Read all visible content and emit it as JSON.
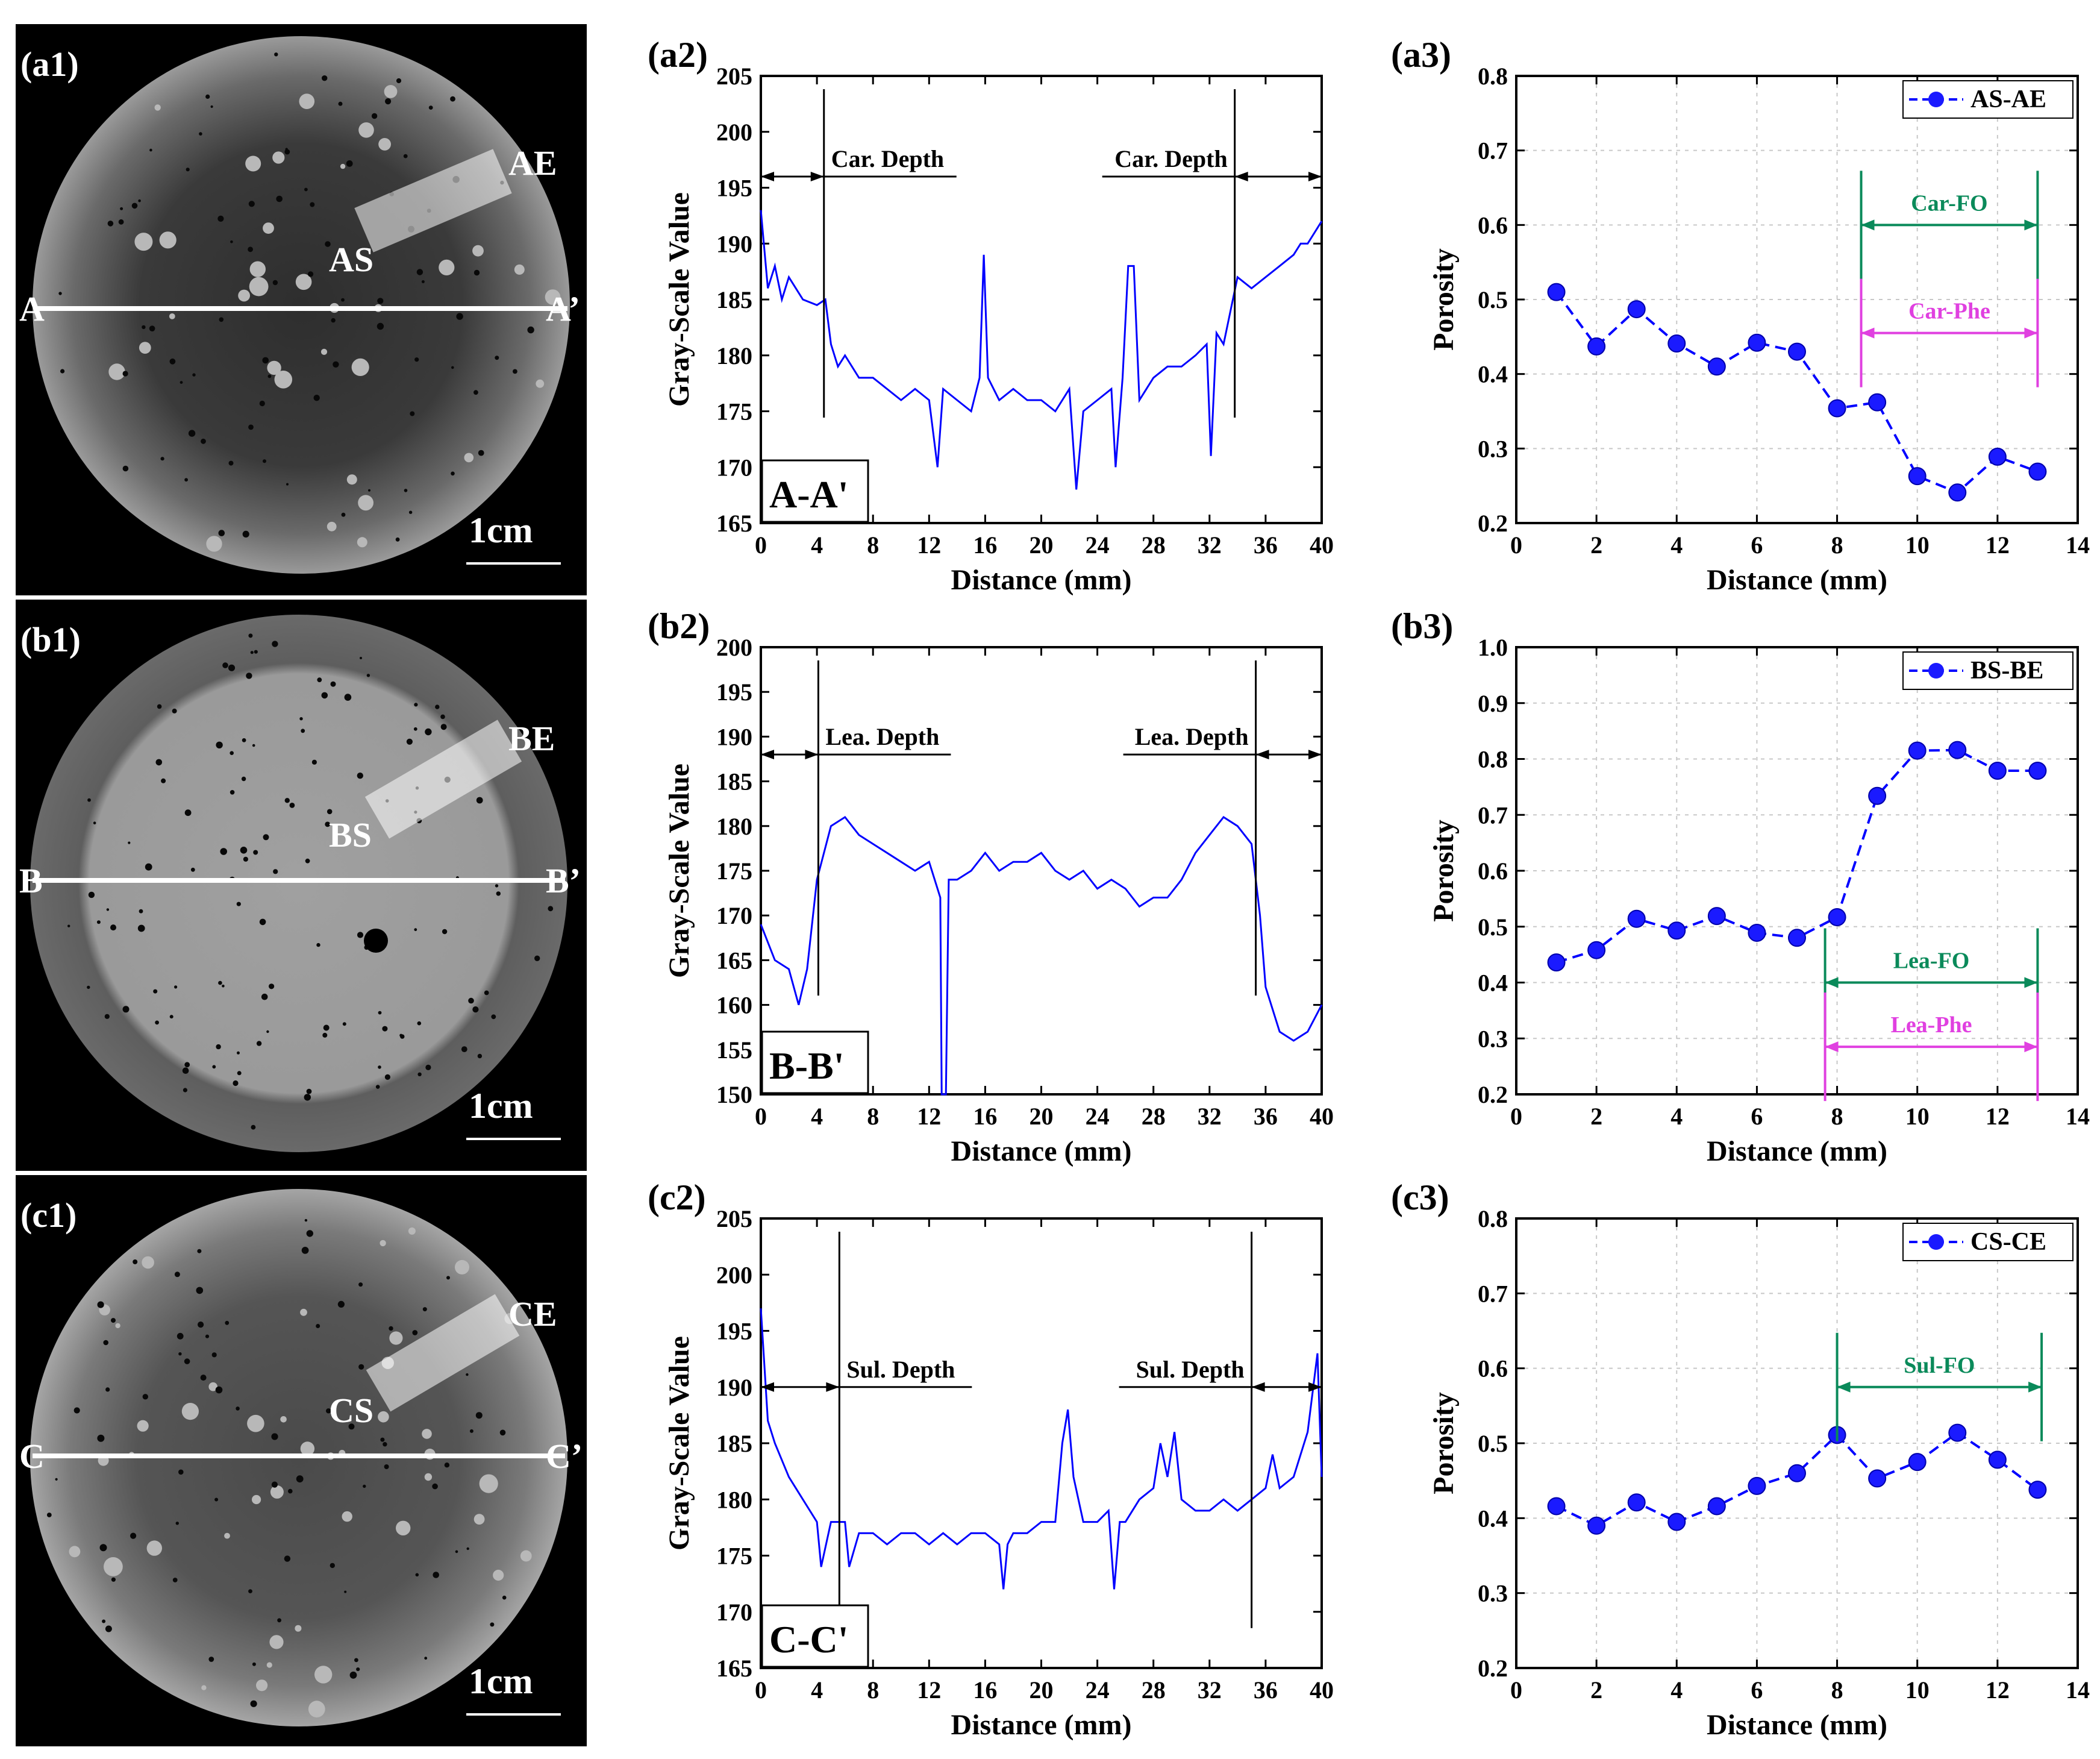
{
  "colors": {
    "line": "#0000ff",
    "marker": "#1a1aff",
    "green": "#0a8a5a",
    "magenta": "#e040e0",
    "ct_bg": "#000000",
    "section_line": "#ffffff"
  },
  "ct_panels": [
    {
      "label": "(a1)",
      "start": "AS",
      "end": "AE",
      "line_left": "A",
      "line_right": "A’",
      "scale": "1cm",
      "style": "carbonation"
    },
    {
      "label": "(b1)",
      "start": "BS",
      "end": "BE",
      "line_left": "B",
      "line_right": "B’",
      "scale": "1cm",
      "style": "leaching"
    },
    {
      "label": "(c1)",
      "start": "CS",
      "end": "CE",
      "line_left": "C",
      "line_right": "C’",
      "scale": "1cm",
      "style": "sulfate"
    }
  ],
  "chart_data": [
    {
      "id": "a2",
      "type": "line",
      "label": "(a2)",
      "tag": "A-A'",
      "xlabel": "Distance (mm)",
      "ylabel": "Gray-Scale Value",
      "xlim": [
        0,
        40
      ],
      "ylim": [
        165,
        205
      ],
      "xticks": [
        0,
        4,
        8,
        12,
        16,
        20,
        24,
        28,
        32,
        36,
        40
      ],
      "yticks": [
        165,
        170,
        175,
        180,
        185,
        190,
        195,
        200,
        205
      ],
      "annotations": [
        {
          "text": "Car. Depth",
          "x": 4.5,
          "arrow_y": 196,
          "side": "left"
        },
        {
          "text": "Car. Depth",
          "x": 33.8,
          "arrow_y": 196,
          "side": "right"
        }
      ],
      "profile": [
        [
          0,
          193
        ],
        [
          0.5,
          186
        ],
        [
          1,
          188
        ],
        [
          1.5,
          185
        ],
        [
          2,
          187
        ],
        [
          3,
          185
        ],
        [
          4,
          184.5
        ],
        [
          4.6,
          185
        ],
        [
          5,
          181
        ],
        [
          5.5,
          179
        ],
        [
          6,
          180
        ],
        [
          7,
          178
        ],
        [
          8,
          178
        ],
        [
          9,
          177
        ],
        [
          10,
          176
        ],
        [
          11,
          177
        ],
        [
          12,
          176
        ],
        [
          12.6,
          170
        ],
        [
          13,
          177
        ],
        [
          14,
          176
        ],
        [
          15,
          175
        ],
        [
          15.6,
          178
        ],
        [
          15.9,
          189
        ],
        [
          16.2,
          178
        ],
        [
          17,
          176
        ],
        [
          18,
          177
        ],
        [
          19,
          176
        ],
        [
          20,
          176
        ],
        [
          21,
          175
        ],
        [
          22,
          177
        ],
        [
          22.5,
          168
        ],
        [
          23,
          175
        ],
        [
          24,
          176
        ],
        [
          25,
          177
        ],
        [
          25.3,
          170
        ],
        [
          25.8,
          178
        ],
        [
          26.2,
          188
        ],
        [
          26.6,
          188
        ],
        [
          27,
          176
        ],
        [
          28,
          178
        ],
        [
          29,
          179
        ],
        [
          30,
          179
        ],
        [
          31,
          180
        ],
        [
          31.8,
          181
        ],
        [
          32.1,
          171
        ],
        [
          32.5,
          182
        ],
        [
          33,
          181
        ],
        [
          33.5,
          184
        ],
        [
          34,
          187
        ],
        [
          35,
          186
        ],
        [
          36,
          187
        ],
        [
          37,
          188
        ],
        [
          38,
          189
        ],
        [
          38.5,
          190
        ],
        [
          39,
          190
        ],
        [
          40,
          192
        ]
      ]
    },
    {
      "id": "a3",
      "type": "line",
      "label": "(a3)",
      "legend": "AS-AE",
      "xlabel": "Distance (mm)",
      "ylabel": "Porosity",
      "xlim": [
        0,
        14
      ],
      "ylim": [
        0.2,
        0.8
      ],
      "xticks": [
        0,
        2,
        4,
        6,
        8,
        10,
        12,
        14
      ],
      "yticks": [
        0.2,
        0.3,
        0.4,
        0.5,
        0.6,
        0.7,
        0.8
      ],
      "x": [
        1,
        2,
        3,
        4,
        5,
        6,
        7,
        8,
        9,
        10,
        11,
        12,
        13
      ],
      "y": [
        0.51,
        0.437,
        0.487,
        0.441,
        0.41,
        0.442,
        0.43,
        0.354,
        0.362,
        0.263,
        0.241,
        0.289,
        0.269
      ],
      "ranges": [
        {
          "text": "Car-FO",
          "color": "green",
          "from": 8.6,
          "to": 13,
          "y": 0.6
        },
        {
          "text": "Car-Phe",
          "color": "magenta",
          "from": 8.6,
          "to": 13,
          "y": 0.455
        }
      ]
    },
    {
      "id": "b2",
      "type": "line",
      "label": "(b2)",
      "tag": "B-B'",
      "xlabel": "Distance (mm)",
      "ylabel": "Gray-Scale Value",
      "xlim": [
        0,
        40
      ],
      "ylim": [
        150,
        200
      ],
      "xticks": [
        0,
        4,
        8,
        12,
        16,
        20,
        24,
        28,
        32,
        36,
        40
      ],
      "yticks": [
        150,
        155,
        160,
        165,
        170,
        175,
        180,
        185,
        190,
        195,
        200
      ],
      "annotations": [
        {
          "text": "Lea. Depth",
          "x": 4.1,
          "arrow_y": 188,
          "side": "left"
        },
        {
          "text": "Lea. Depth",
          "x": 35.3,
          "arrow_y": 188,
          "side": "right"
        }
      ],
      "profile": [
        [
          0,
          169
        ],
        [
          1,
          165
        ],
        [
          2,
          164
        ],
        [
          2.7,
          160
        ],
        [
          3.3,
          164
        ],
        [
          4,
          174
        ],
        [
          5,
          180
        ],
        [
          6,
          181
        ],
        [
          7,
          179
        ],
        [
          8,
          178
        ],
        [
          9,
          177
        ],
        [
          10,
          176
        ],
        [
          11,
          175
        ],
        [
          12,
          176
        ],
        [
          12.8,
          172
        ],
        [
          12.9,
          150
        ],
        [
          13.2,
          150
        ],
        [
          13.4,
          174
        ],
        [
          14,
          174
        ],
        [
          15,
          175
        ],
        [
          16,
          177
        ],
        [
          17,
          175
        ],
        [
          18,
          176
        ],
        [
          19,
          176
        ],
        [
          20,
          177
        ],
        [
          21,
          175
        ],
        [
          22,
          174
        ],
        [
          23,
          175
        ],
        [
          24,
          173
        ],
        [
          25,
          174
        ],
        [
          26,
          173
        ],
        [
          27,
          171
        ],
        [
          28,
          172
        ],
        [
          29,
          172
        ],
        [
          30,
          174
        ],
        [
          31,
          177
        ],
        [
          32,
          179
        ],
        [
          33,
          181
        ],
        [
          34,
          180
        ],
        [
          35,
          178
        ],
        [
          35.6,
          170
        ],
        [
          36,
          162
        ],
        [
          37,
          157
        ],
        [
          38,
          156
        ],
        [
          39,
          157
        ],
        [
          40,
          160
        ]
      ]
    },
    {
      "id": "b3",
      "type": "line",
      "label": "(b3)",
      "legend": "BS-BE",
      "xlabel": "Distance (mm)",
      "ylabel": "Porosity",
      "xlim": [
        0,
        14
      ],
      "ylim": [
        0.2,
        1.0
      ],
      "xticks": [
        0,
        2,
        4,
        6,
        8,
        10,
        12,
        14
      ],
      "yticks": [
        0.2,
        0.3,
        0.4,
        0.5,
        0.6,
        0.7,
        0.8,
        0.9,
        1.0
      ],
      "x": [
        1,
        2,
        3,
        4,
        5,
        6,
        7,
        8,
        9,
        10,
        11,
        12,
        13
      ],
      "y": [
        0.436,
        0.458,
        0.514,
        0.493,
        0.519,
        0.489,
        0.48,
        0.517,
        0.734,
        0.815,
        0.816,
        0.779,
        0.779
      ],
      "ranges": [
        {
          "text": "Lea-FO",
          "color": "green",
          "from": 7.7,
          "to": 13,
          "y": 0.4
        },
        {
          "text": "Lea-Phe",
          "color": "magenta",
          "from": 7.7,
          "to": 13,
          "y": 0.285
        }
      ]
    },
    {
      "id": "c2",
      "type": "line",
      "label": "(c2)",
      "tag": "C-C'",
      "xlabel": "Distance (mm)",
      "ylabel": "Gray-Scale Value",
      "xlim": [
        0,
        40
      ],
      "ylim": [
        165,
        205
      ],
      "xticks": [
        0,
        4,
        8,
        12,
        16,
        20,
        24,
        28,
        32,
        36,
        40
      ],
      "yticks": [
        165,
        170,
        175,
        180,
        185,
        190,
        195,
        200,
        205
      ],
      "annotations": [
        {
          "text": "Sul. Depth",
          "x": 5.6,
          "arrow_y": 190,
          "side": "left"
        },
        {
          "text": "Sul. Depth",
          "x": 35,
          "arrow_y": 190,
          "side": "right"
        }
      ],
      "profile": [
        [
          0,
          197
        ],
        [
          0.5,
          187
        ],
        [
          1,
          185
        ],
        [
          2,
          182
        ],
        [
          3,
          180
        ],
        [
          4,
          178
        ],
        [
          4.3,
          174
        ],
        [
          5,
          178
        ],
        [
          6,
          178
        ],
        [
          6.3,
          174
        ],
        [
          7,
          177
        ],
        [
          8,
          177
        ],
        [
          9,
          176
        ],
        [
          10,
          177
        ],
        [
          11,
          177
        ],
        [
          12,
          176
        ],
        [
          13,
          177
        ],
        [
          14,
          176
        ],
        [
          15,
          177
        ],
        [
          16,
          177
        ],
        [
          17,
          176
        ],
        [
          17.3,
          172
        ],
        [
          17.6,
          176
        ],
        [
          18,
          177
        ],
        [
          19,
          177
        ],
        [
          20,
          178
        ],
        [
          21,
          178
        ],
        [
          21.5,
          185
        ],
        [
          21.9,
          188
        ],
        [
          22.3,
          182
        ],
        [
          23,
          178
        ],
        [
          24,
          178
        ],
        [
          24.8,
          179
        ],
        [
          25.2,
          172
        ],
        [
          25.6,
          178
        ],
        [
          26,
          178
        ],
        [
          27,
          180
        ],
        [
          28,
          181
        ],
        [
          28.5,
          185
        ],
        [
          29,
          182
        ],
        [
          29.5,
          186
        ],
        [
          30,
          180
        ],
        [
          31,
          179
        ],
        [
          32,
          179
        ],
        [
          33,
          180
        ],
        [
          34,
          179
        ],
        [
          35,
          180
        ],
        [
          36,
          181
        ],
        [
          36.5,
          184
        ],
        [
          37,
          181
        ],
        [
          38,
          182
        ],
        [
          39,
          186
        ],
        [
          39.7,
          193
        ],
        [
          40,
          182
        ]
      ]
    },
    {
      "id": "c3",
      "type": "line",
      "label": "(c3)",
      "legend": "CS-CE",
      "xlabel": "Distance (mm)",
      "ylabel": "Porosity",
      "xlim": [
        0,
        14
      ],
      "ylim": [
        0.2,
        0.8
      ],
      "xticks": [
        0,
        2,
        4,
        6,
        8,
        10,
        12,
        14
      ],
      "yticks": [
        0.2,
        0.3,
        0.4,
        0.5,
        0.6,
        0.7,
        0.8
      ],
      "x": [
        1,
        2,
        3,
        4,
        5,
        6,
        7,
        8,
        9,
        10,
        11,
        12,
        13
      ],
      "y": [
        0.416,
        0.39,
        0.421,
        0.395,
        0.416,
        0.443,
        0.46,
        0.511,
        0.453,
        0.475,
        0.514,
        0.478,
        0.438
      ],
      "ranges": [
        {
          "text": "Sul-FO",
          "color": "green",
          "from": 8,
          "to": 13.1,
          "y": 0.575
        }
      ]
    }
  ]
}
